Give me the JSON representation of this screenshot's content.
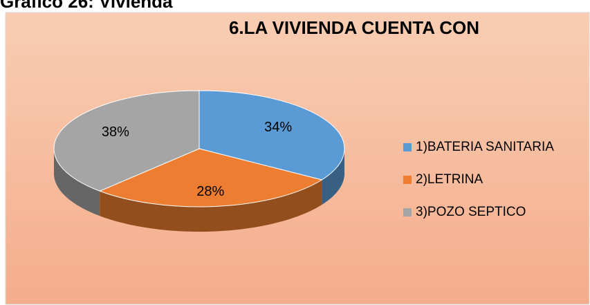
{
  "header": {
    "caption": "Gráfico 26: Vivienda"
  },
  "chart_data": {
    "type": "pie",
    "title": "6.LA VIVIENDA CUENTA CON",
    "categories": [
      "1)BATERIA SANITARIA",
      "2)LETRINA",
      "3)POZO SEPTICO"
    ],
    "values": [
      34,
      28,
      38
    ],
    "value_labels": [
      "34%",
      "28%",
      "38%"
    ],
    "colors": [
      "#5b9bd5",
      "#ed7d31",
      "#a5a5a5"
    ],
    "legend": "right"
  }
}
